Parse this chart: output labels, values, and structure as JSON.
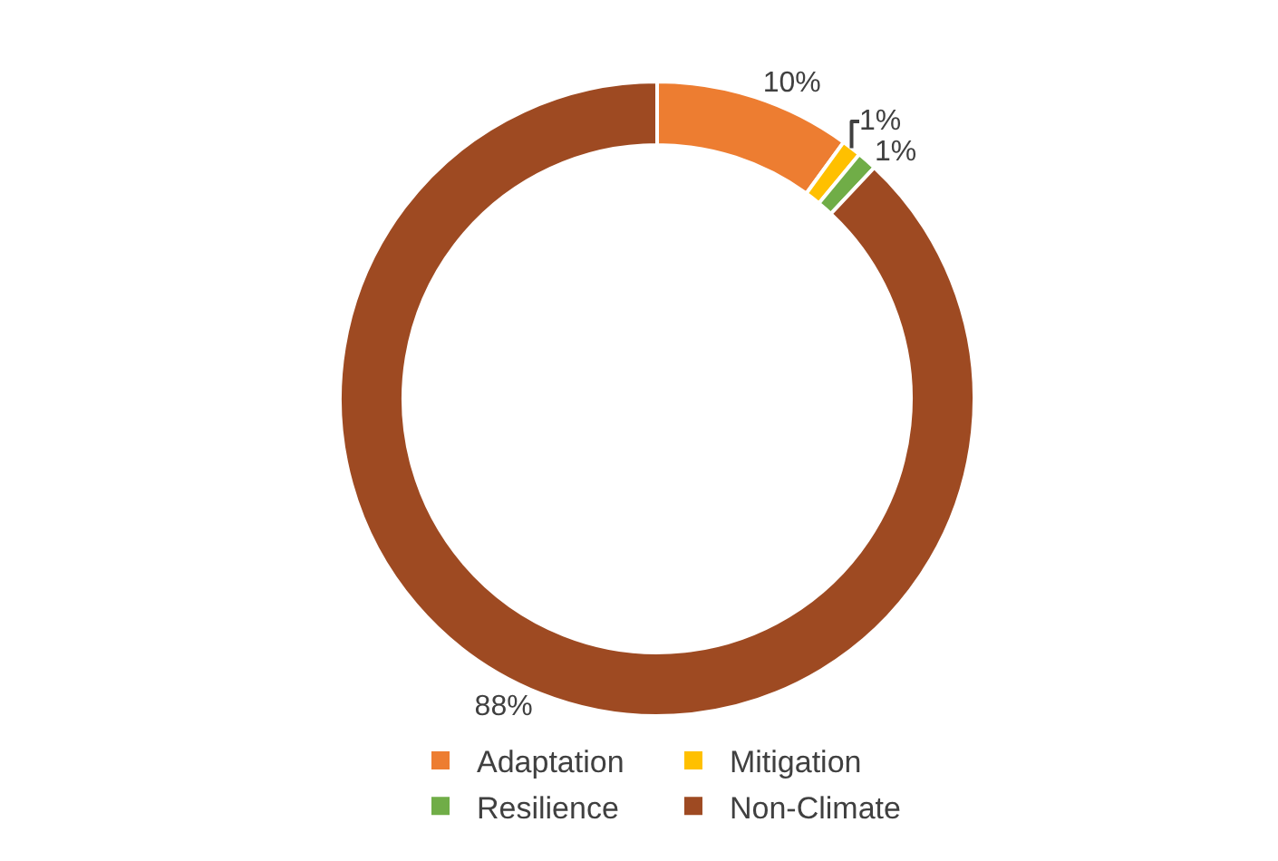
{
  "chart_data": {
    "type": "donut",
    "categories": [
      "Adaptation",
      "Mitigation",
      "Resilience",
      "Non-Climate"
    ],
    "values": [
      10,
      1,
      1,
      88
    ],
    "colors": [
      "#ed7d31",
      "#ffc000",
      "#70ad47",
      "#9e4a22"
    ],
    "value_labels": [
      "10%",
      "1%",
      "1%",
      "88%"
    ],
    "legend": "bottom"
  }
}
